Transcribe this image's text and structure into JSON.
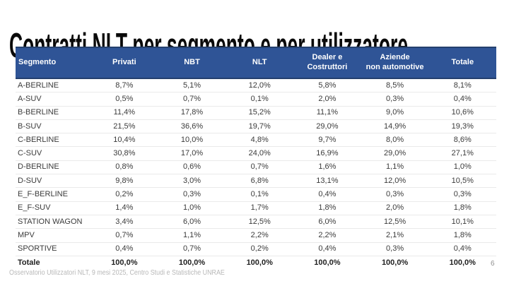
{
  "slide": {
    "title": "Contratti NLT per segmento e per utilizzatore",
    "footer_note": "Osservatorio Utilizzatori NLT, 9 mesi 2025, Centro Studi e Statistiche UNRAE",
    "page_number": "6"
  },
  "colors": {
    "header_bg": "#2F5496",
    "header_border": "#24406E",
    "header_text": "#FFFFFF",
    "body_text": "#3B3B3B",
    "row_divider": "#EAEAEA",
    "title_text": "#0A0A0A",
    "footer_text": "#B8B8B8",
    "page_number_text": "#8F8F8F"
  },
  "table": {
    "columns": [
      "Segmento",
      "Privati",
      "NBT",
      "NLT",
      "Dealer e\nCostruttori",
      "Aziende\nnon automotive",
      "Totale"
    ],
    "rows": [
      {
        "label": "A-BERLINE",
        "values": [
          "8,7%",
          "5,1%",
          "12,0%",
          "5,8%",
          "8,5%",
          "8,1%"
        ]
      },
      {
        "label": "A-SUV",
        "values": [
          "0,5%",
          "0,7%",
          "0,1%",
          "2,0%",
          "0,3%",
          "0,4%"
        ]
      },
      {
        "label": "B-BERLINE",
        "values": [
          "11,4%",
          "17,8%",
          "15,2%",
          "11,1%",
          "9,0%",
          "10,6%"
        ]
      },
      {
        "label": "B-SUV",
        "values": [
          "21,5%",
          "36,6%",
          "19,7%",
          "29,0%",
          "14,9%",
          "19,3%"
        ]
      },
      {
        "label": "C-BERLINE",
        "values": [
          "10,4%",
          "10,0%",
          "4,8%",
          "9,7%",
          "8,0%",
          "8,6%"
        ]
      },
      {
        "label": "C-SUV",
        "values": [
          "30,8%",
          "17,0%",
          "24,0%",
          "16,9%",
          "29,0%",
          "27,1%"
        ]
      },
      {
        "label": "D-BERLINE",
        "values": [
          "0,8%",
          "0,6%",
          "0,7%",
          "1,6%",
          "1,1%",
          "1,0%"
        ]
      },
      {
        "label": "D-SUV",
        "values": [
          "9,8%",
          "3,0%",
          "6,8%",
          "13,1%",
          "12,0%",
          "10,5%"
        ]
      },
      {
        "label": "E_F-BERLINE",
        "values": [
          "0,2%",
          "0,3%",
          "0,1%",
          "0,4%",
          "0,3%",
          "0,3%"
        ]
      },
      {
        "label": "E_F-SUV",
        "values": [
          "1,4%",
          "1,0%",
          "1,7%",
          "1,8%",
          "2,0%",
          "1,8%"
        ]
      },
      {
        "label": "STATION WAGON",
        "values": [
          "3,4%",
          "6,0%",
          "12,5%",
          "6,0%",
          "12,5%",
          "10,1%"
        ]
      },
      {
        "label": "MPV",
        "values": [
          "0,7%",
          "1,1%",
          "2,2%",
          "2,2%",
          "2,1%",
          "1,8%"
        ]
      },
      {
        "label": "SPORTIVE",
        "values": [
          "0,4%",
          "0,7%",
          "0,2%",
          "0,4%",
          "0,3%",
          "0,4%"
        ]
      }
    ],
    "total": {
      "label": "Totale",
      "values": [
        "100,0%",
        "100,0%",
        "100,0%",
        "100,0%",
        "100,0%",
        "100,0%"
      ]
    }
  }
}
